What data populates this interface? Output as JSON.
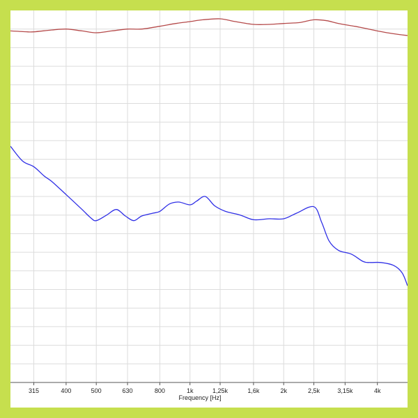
{
  "colors": {
    "frame": "#c6df4e",
    "background": "#ffffff",
    "grid": "#dcdcdc",
    "axis": "#555555",
    "series_top": "#b54a4a",
    "series_bottom": "#2f2fe6"
  },
  "chart_data": {
    "type": "line",
    "title": "",
    "xlabel": "Frequency [Hz]",
    "ylabel": "",
    "x_scale": "log",
    "xlim": [
      265,
      5000
    ],
    "ylim": [
      0,
      20
    ],
    "grid": true,
    "legend": "none",
    "x_ticks": [
      {
        "value": 315,
        "label": "315"
      },
      {
        "value": 400,
        "label": "400"
      },
      {
        "value": 500,
        "label": "500"
      },
      {
        "value": 630,
        "label": "630"
      },
      {
        "value": 800,
        "label": "800"
      },
      {
        "value": 1000,
        "label": "1k"
      },
      {
        "value": 1250,
        "label": "1,25k"
      },
      {
        "value": 1600,
        "label": "1,6k"
      },
      {
        "value": 2000,
        "label": "2k"
      },
      {
        "value": 2500,
        "label": "2,5k"
      },
      {
        "value": 3150,
        "label": "3,15k"
      },
      {
        "value": 4000,
        "label": "4k"
      }
    ],
    "series": [
      {
        "color": "#b54a4a",
        "x": [
          265,
          300,
          315,
          360,
          400,
          450,
          500,
          560,
          630,
          700,
          800,
          900,
          1000,
          1100,
          1250,
          1400,
          1600,
          1800,
          2000,
          2250,
          2500,
          2750,
          3000,
          3500,
          4000,
          4500,
          5000
        ],
        "y": [
          18.9,
          18.85,
          18.85,
          18.95,
          19.0,
          18.9,
          18.8,
          18.9,
          19.0,
          19.0,
          19.15,
          19.3,
          19.4,
          19.5,
          19.55,
          19.4,
          19.25,
          19.25,
          19.3,
          19.35,
          19.5,
          19.45,
          19.3,
          19.1,
          18.9,
          18.75,
          18.65
        ]
      },
      {
        "color": "#2f2fe6",
        "x": [
          265,
          290,
          315,
          340,
          360,
          400,
          450,
          480,
          500,
          540,
          580,
          620,
          660,
          700,
          760,
          800,
          860,
          920,
          1000,
          1050,
          1120,
          1200,
          1300,
          1450,
          1600,
          1800,
          2000,
          2200,
          2500,
          2650,
          2800,
          3000,
          3300,
          3600,
          3800,
          4100,
          4500,
          4800,
          5000
        ],
        "y": [
          12.7,
          11.9,
          11.6,
          11.1,
          10.8,
          10.1,
          9.3,
          8.85,
          8.7,
          9.0,
          9.3,
          8.95,
          8.7,
          8.95,
          9.1,
          9.2,
          9.6,
          9.7,
          9.55,
          9.75,
          10.0,
          9.5,
          9.2,
          9.0,
          8.75,
          8.8,
          8.8,
          9.1,
          9.45,
          8.6,
          7.6,
          7.1,
          6.9,
          6.5,
          6.45,
          6.45,
          6.3,
          5.9,
          5.2
        ]
      }
    ]
  }
}
